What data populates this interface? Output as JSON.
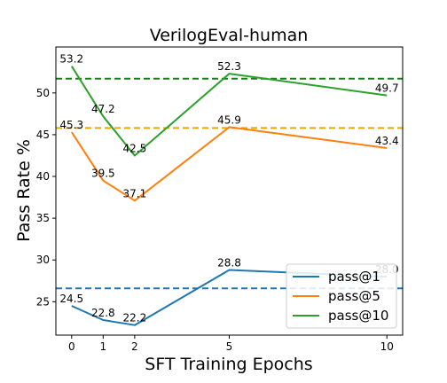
{
  "chart_data": {
    "type": "line",
    "title": "VerilogEval-human",
    "xlabel": "SFT Training Epochs",
    "ylabel": "Pass Rate %",
    "x": [
      0,
      1,
      2,
      5,
      10
    ],
    "x_ticks": [
      0,
      1,
      2,
      5,
      10
    ],
    "xlim": [
      -0.5,
      10.5
    ],
    "y_ticks": [
      25,
      30,
      35,
      40,
      45,
      50
    ],
    "ylim": [
      21.0,
      55.5
    ],
    "grid": false,
    "legend_position": "lower-right",
    "series": [
      {
        "name": "pass@1",
        "color": "#1f77b4",
        "values": [
          24.5,
          22.8,
          22.2,
          28.8,
          28.0
        ],
        "baseline": 26.6
      },
      {
        "name": "pass@5",
        "color": "#ff7f0e",
        "values": [
          45.3,
          39.5,
          37.1,
          45.9,
          43.4
        ],
        "baseline": 45.8
      },
      {
        "name": "pass@10",
        "color": "#2ca02c",
        "values": [
          53.2,
          47.2,
          42.5,
          52.3,
          49.7
        ],
        "baseline": 51.7
      }
    ],
    "baseline_colors": [
      "#1f77b4",
      "#e8a800",
      "#1a7f1a"
    ]
  }
}
